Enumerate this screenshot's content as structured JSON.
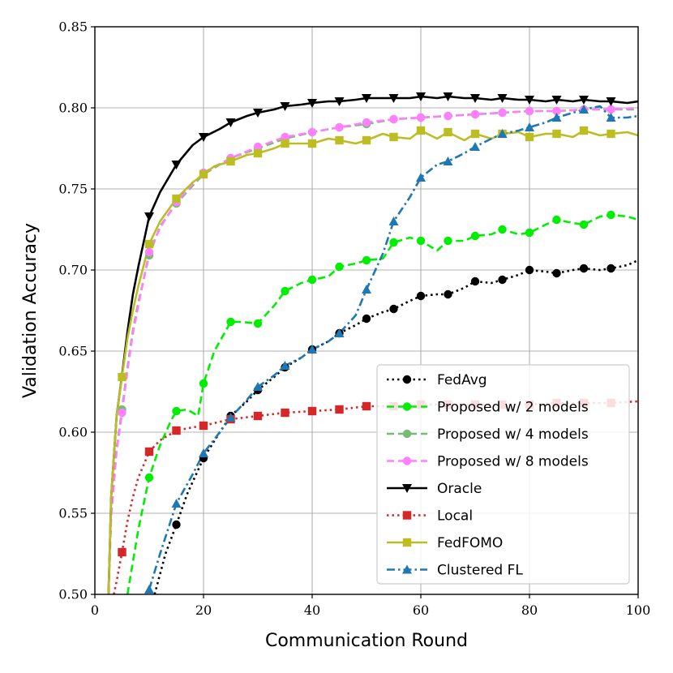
{
  "chart_data": {
    "type": "line",
    "xlabel": "Communication Round",
    "ylabel": "Validation Accuracy",
    "xlim": [
      0,
      100
    ],
    "ylim": [
      0.5,
      0.85
    ],
    "xticks": [
      0,
      20,
      40,
      60,
      80,
      100
    ],
    "yticks": [
      0.5,
      0.55,
      0.6,
      0.65,
      0.7,
      0.75,
      0.8,
      0.85
    ],
    "ytick_labels": [
      "0.50",
      "0.55",
      "0.60",
      "0.65",
      "0.70",
      "0.75",
      "0.80",
      "0.85"
    ],
    "grid": true,
    "legend_position": "lower-right",
    "series": [
      {
        "name": "FedAvg",
        "color": "#000000",
        "linestyle": "dotted",
        "marker": "circle",
        "x": [
          11,
          13,
          15,
          17,
          20,
          23,
          25,
          28,
          30,
          33,
          35,
          38,
          40,
          43,
          45,
          48,
          50,
          53,
          55,
          58,
          60,
          63,
          65,
          68,
          70,
          73,
          75,
          78,
          80,
          83,
          85,
          88,
          90,
          93,
          95,
          98,
          100
        ],
        "y": [
          0.5,
          0.525,
          0.543,
          0.562,
          0.584,
          0.6,
          0.61,
          0.619,
          0.626,
          0.634,
          0.64,
          0.646,
          0.651,
          0.656,
          0.661,
          0.666,
          0.67,
          0.674,
          0.676,
          0.681,
          0.684,
          0.685,
          0.685,
          0.689,
          0.693,
          0.692,
          0.694,
          0.697,
          0.7,
          0.699,
          0.698,
          0.7,
          0.701,
          0.7,
          0.701,
          0.703,
          0.706
        ],
        "marker_x": [
          15,
          20,
          25,
          30,
          35,
          40,
          45,
          50,
          55,
          60,
          65,
          70,
          75,
          80,
          85,
          90,
          95
        ]
      },
      {
        "name": "Proposed w/ 2 models",
        "color": "#00ee00",
        "linestyle": "dashed",
        "marker": "circle",
        "x": [
          6,
          8,
          10,
          12,
          14,
          15,
          17,
          19,
          20,
          22,
          25,
          27,
          30,
          33,
          35,
          38,
          40,
          43,
          45,
          48,
          50,
          53,
          55,
          58,
          60,
          63,
          65,
          68,
          70,
          73,
          75,
          78,
          80,
          83,
          85,
          88,
          90,
          93,
          95,
          98,
          100
        ],
        "y": [
          0.5,
          0.54,
          0.572,
          0.592,
          0.607,
          0.613,
          0.614,
          0.61,
          0.63,
          0.65,
          0.668,
          0.668,
          0.667,
          0.678,
          0.687,
          0.692,
          0.694,
          0.696,
          0.702,
          0.704,
          0.706,
          0.707,
          0.717,
          0.72,
          0.718,
          0.712,
          0.718,
          0.718,
          0.721,
          0.722,
          0.725,
          0.722,
          0.723,
          0.728,
          0.731,
          0.729,
          0.728,
          0.733,
          0.734,
          0.733,
          0.731
        ],
        "marker_x": [
          10,
          15,
          20,
          25,
          30,
          35,
          40,
          45,
          50,
          55,
          60,
          65,
          70,
          75,
          80,
          85,
          90,
          95
        ]
      },
      {
        "name": "Proposed w/ 4 models",
        "color": "#77bb77",
        "linestyle": "dashed",
        "marker": "circle",
        "x": [
          2.5,
          3,
          4,
          5,
          6,
          7,
          8,
          10,
          12,
          15,
          18,
          20,
          25,
          30,
          35,
          40,
          45,
          50,
          55,
          60,
          65,
          70,
          75,
          80,
          85,
          90,
          95,
          100
        ],
        "y": [
          0.5,
          0.55,
          0.59,
          0.614,
          0.64,
          0.663,
          0.68,
          0.709,
          0.727,
          0.741,
          0.752,
          0.759,
          0.769,
          0.775,
          0.781,
          0.785,
          0.788,
          0.79,
          0.793,
          0.794,
          0.795,
          0.796,
          0.797,
          0.798,
          0.798,
          0.799,
          0.799,
          0.799
        ],
        "marker_x": [
          5,
          10,
          15,
          20,
          25,
          30,
          35,
          40,
          45,
          50,
          55,
          60,
          65,
          70,
          75,
          80,
          85,
          90,
          95
        ]
      },
      {
        "name": "Proposed w/ 8 models",
        "color": "#ff7fff",
        "linestyle": "dashed",
        "marker": "circle",
        "x": [
          2.5,
          3,
          4,
          5,
          6,
          7,
          8,
          10,
          12,
          15,
          18,
          20,
          25,
          30,
          35,
          40,
          45,
          50,
          55,
          60,
          65,
          70,
          75,
          80,
          85,
          90,
          95,
          100
        ],
        "y": [
          0.5,
          0.548,
          0.588,
          0.612,
          0.638,
          0.661,
          0.678,
          0.711,
          0.726,
          0.742,
          0.753,
          0.76,
          0.769,
          0.776,
          0.782,
          0.785,
          0.788,
          0.791,
          0.793,
          0.794,
          0.795,
          0.796,
          0.797,
          0.798,
          0.798,
          0.799,
          0.799,
          0.8
        ],
        "marker_x": [
          5,
          10,
          15,
          20,
          25,
          30,
          35,
          40,
          45,
          50,
          55,
          60,
          65,
          70,
          75,
          80,
          85,
          90,
          95
        ]
      },
      {
        "name": "Oracle",
        "color": "#000000",
        "linestyle": "solid",
        "marker": "triangle-down",
        "x": [
          2.5,
          3,
          4,
          5,
          6,
          7,
          8,
          10,
          12,
          15,
          18,
          20,
          23,
          25,
          28,
          30,
          33,
          35,
          38,
          40,
          43,
          45,
          48,
          50,
          53,
          55,
          58,
          60,
          63,
          65,
          68,
          70,
          73,
          75,
          78,
          80,
          83,
          85,
          88,
          90,
          93,
          95,
          98,
          100
        ],
        "y": [
          0.5,
          0.56,
          0.61,
          0.635,
          0.662,
          0.685,
          0.702,
          0.733,
          0.748,
          0.765,
          0.777,
          0.782,
          0.787,
          0.791,
          0.795,
          0.797,
          0.799,
          0.801,
          0.802,
          0.803,
          0.804,
          0.804,
          0.805,
          0.806,
          0.806,
          0.806,
          0.806,
          0.807,
          0.806,
          0.807,
          0.806,
          0.806,
          0.805,
          0.806,
          0.805,
          0.805,
          0.804,
          0.805,
          0.804,
          0.805,
          0.804,
          0.804,
          0.803,
          0.804
        ],
        "marker_x": [
          10,
          15,
          20,
          25,
          30,
          35,
          40,
          45,
          50,
          55,
          60,
          65,
          70,
          75,
          80,
          85,
          90,
          95
        ]
      },
      {
        "name": "Local",
        "color": "#d62728",
        "linestyle": "dotted",
        "marker": "square",
        "x": [
          3.5,
          4,
          5,
          6,
          7,
          8,
          10,
          12,
          15,
          18,
          20,
          25,
          30,
          35,
          40,
          45,
          50,
          55,
          60,
          65,
          70,
          75,
          80,
          85,
          90,
          95,
          100
        ],
        "y": [
          0.5,
          0.508,
          0.526,
          0.545,
          0.56,
          0.572,
          0.588,
          0.595,
          0.601,
          0.603,
          0.604,
          0.608,
          0.61,
          0.612,
          0.613,
          0.614,
          0.616,
          0.616,
          0.617,
          0.617,
          0.617,
          0.617,
          0.617,
          0.618,
          0.618,
          0.618,
          0.619
        ],
        "marker_x": [
          5,
          10,
          15,
          20,
          25,
          30,
          35,
          40,
          45,
          50,
          55,
          60,
          65,
          70,
          75,
          80,
          85,
          90,
          95
        ]
      },
      {
        "name": "FedFOMO",
        "color": "#bcbd22",
        "linestyle": "solid",
        "marker": "square",
        "x": [
          2.5,
          3,
          4,
          5,
          6,
          7,
          8,
          10,
          12,
          15,
          18,
          20,
          22,
          25,
          28,
          30,
          33,
          35,
          38,
          40,
          43,
          45,
          48,
          50,
          53,
          55,
          58,
          60,
          63,
          65,
          68,
          70,
          73,
          75,
          78,
          80,
          83,
          85,
          88,
          90,
          93,
          95,
          98,
          100
        ],
        "y": [
          0.5,
          0.56,
          0.61,
          0.634,
          0.658,
          0.675,
          0.69,
          0.716,
          0.73,
          0.744,
          0.754,
          0.759,
          0.764,
          0.767,
          0.771,
          0.772,
          0.775,
          0.778,
          0.778,
          0.778,
          0.781,
          0.78,
          0.778,
          0.78,
          0.784,
          0.782,
          0.781,
          0.786,
          0.781,
          0.785,
          0.78,
          0.784,
          0.781,
          0.784,
          0.785,
          0.782,
          0.784,
          0.784,
          0.782,
          0.786,
          0.783,
          0.784,
          0.785,
          0.783
        ],
        "marker_x": [
          5,
          10,
          15,
          20,
          25,
          30,
          35,
          40,
          45,
          50,
          55,
          60,
          65,
          70,
          75,
          80,
          85,
          90,
          95
        ]
      },
      {
        "name": "Clustered FL",
        "color": "#1f77b4",
        "linestyle": "dashdot",
        "marker": "triangle-up",
        "x": [
          10,
          12,
          15,
          18,
          20,
          23,
          25,
          28,
          30,
          33,
          35,
          38,
          40,
          43,
          45,
          48,
          50,
          53,
          55,
          58,
          60,
          63,
          65,
          68,
          70,
          73,
          75,
          78,
          80,
          83,
          85,
          88,
          90,
          93,
          95,
          98,
          100
        ],
        "y": [
          0.503,
          0.525,
          0.556,
          0.574,
          0.587,
          0.6,
          0.609,
          0.62,
          0.628,
          0.635,
          0.641,
          0.646,
          0.651,
          0.656,
          0.661,
          0.672,
          0.688,
          0.71,
          0.73,
          0.745,
          0.757,
          0.765,
          0.767,
          0.772,
          0.776,
          0.781,
          0.784,
          0.786,
          0.788,
          0.791,
          0.794,
          0.797,
          0.799,
          0.801,
          0.794,
          0.794,
          0.795
        ],
        "marker_x": [
          10,
          15,
          20,
          25,
          30,
          35,
          40,
          45,
          50,
          55,
          60,
          65,
          70,
          75,
          80,
          85,
          90,
          95
        ]
      }
    ]
  }
}
